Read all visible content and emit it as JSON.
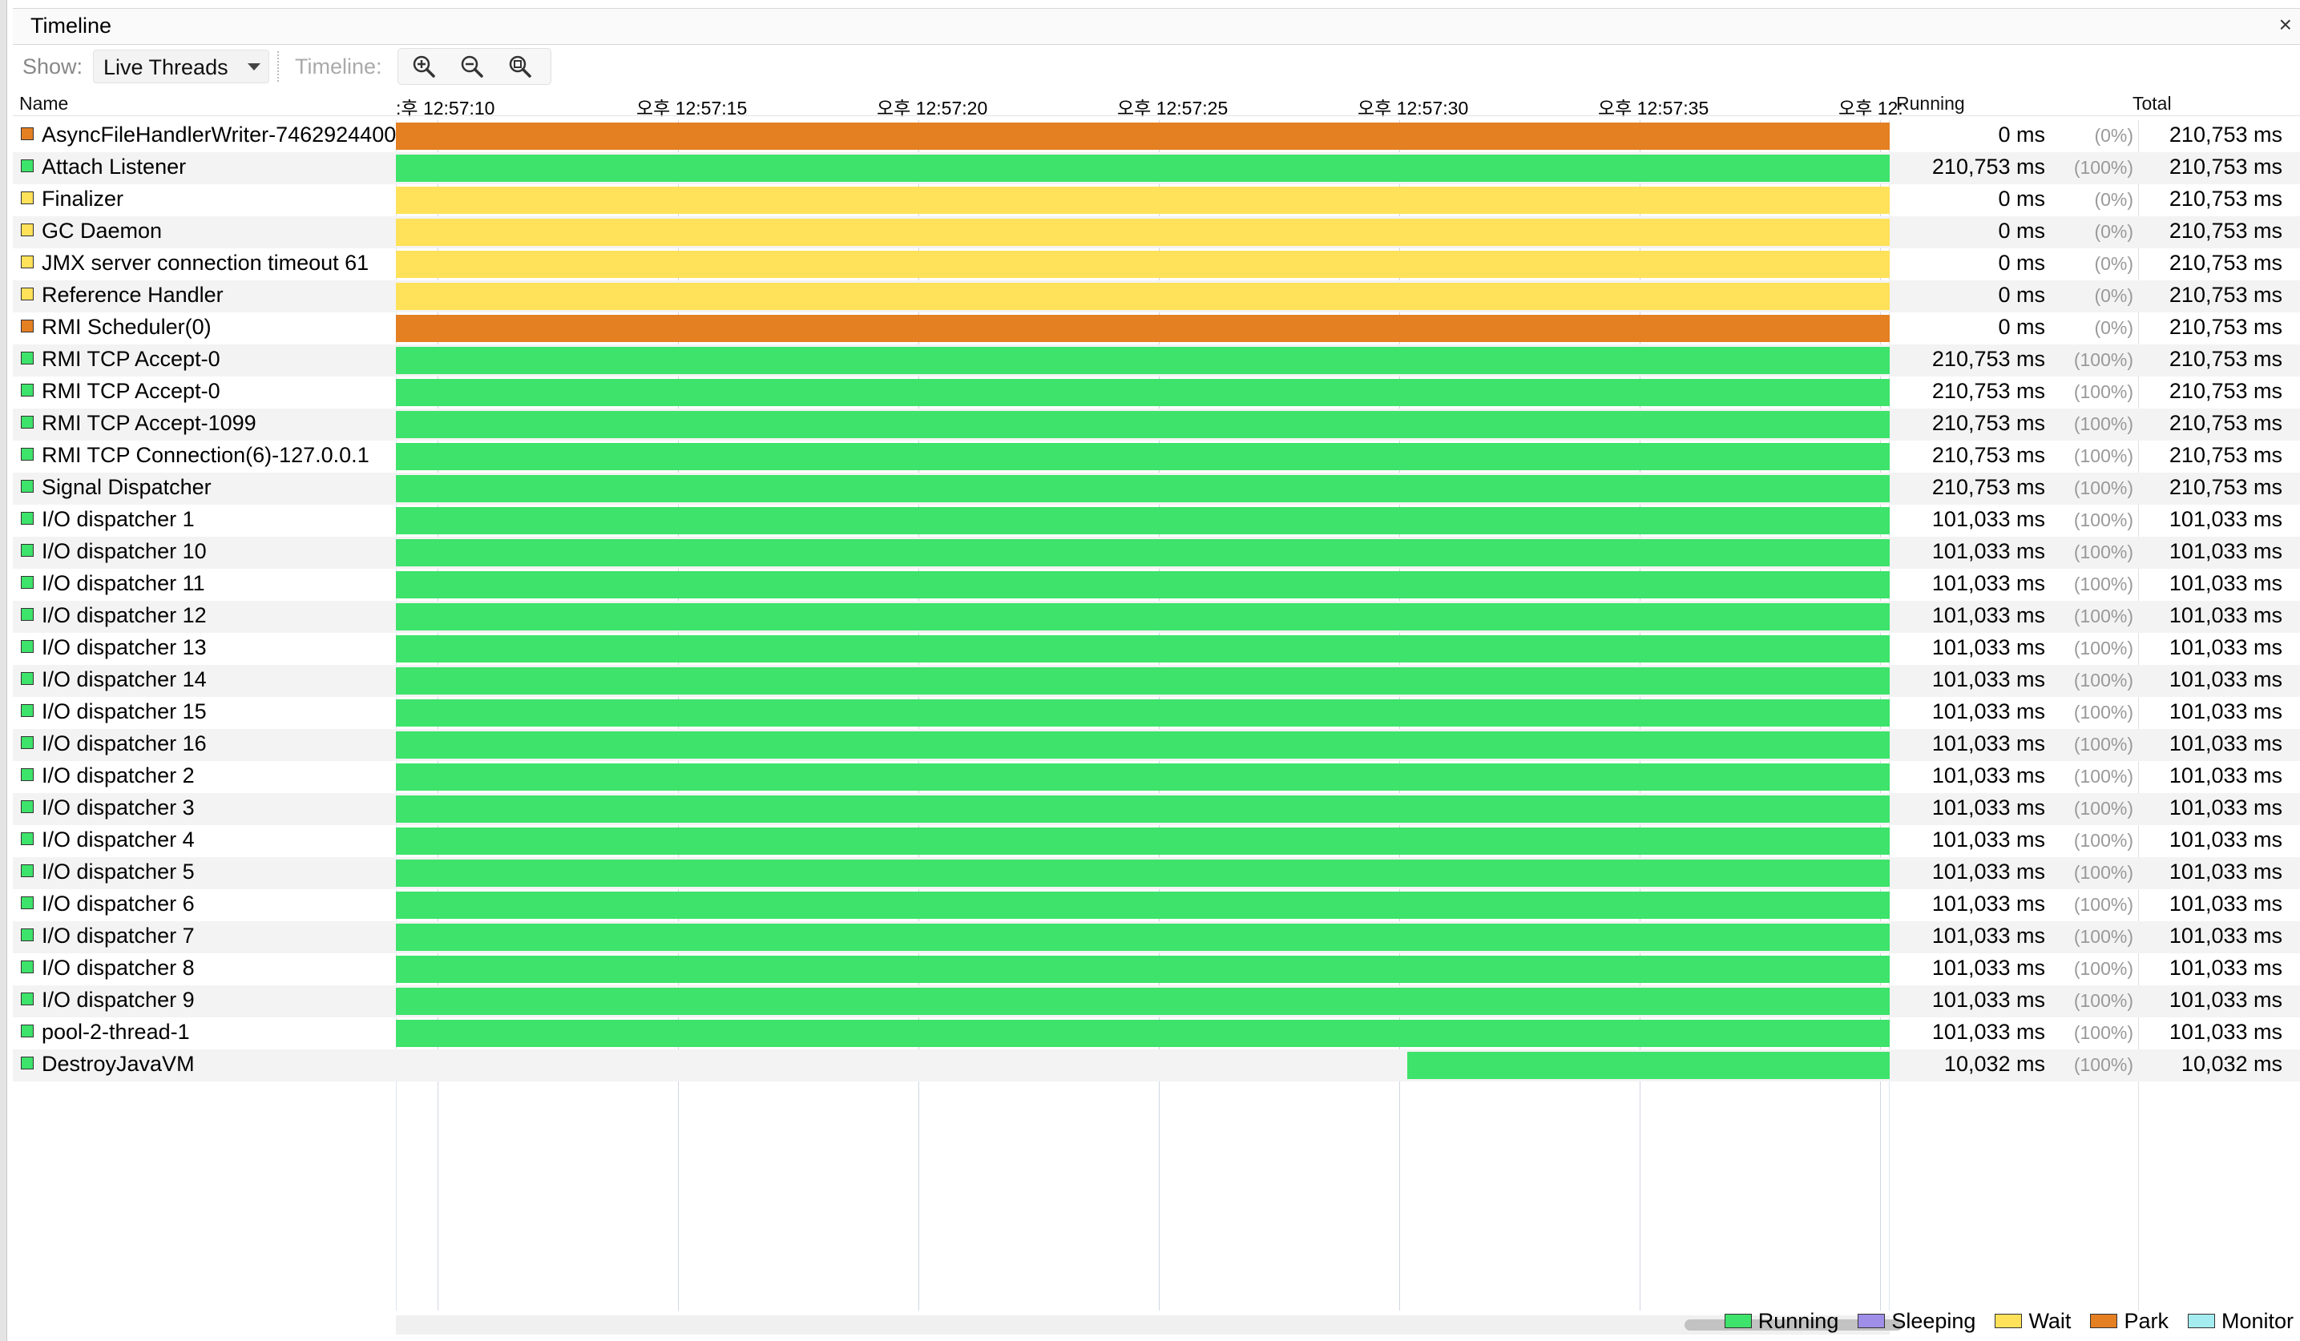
{
  "window": {
    "title": "Timeline"
  },
  "toolbar": {
    "show_label": "Show:",
    "show_value": "Live Threads",
    "timeline_label": "Timeline:"
  },
  "columns": {
    "name": "Name",
    "running": "Running",
    "total": "Total"
  },
  "ticks": ":후 12:57:10|오후 12:57:15|오후 12:57:20|오후 12:57:25|오후 12:57:30|오후 12:57:35|오후 12:",
  "tick_labels": [
    "​:후 12:57:10",
    "오후 12:57:15",
    "오후 12:57:20",
    "오후 12:57:25",
    "오후 12:57:30",
    "오후 12:57:35",
    "오후 12:"
  ],
  "colors": {
    "running": "#3de36a",
    "sleeping": "#9f8fe8",
    "wait": "#ffe15a",
    "park": "#e47f22",
    "monitor": "#a4ecef"
  },
  "threads": [
    {
      "name": "AsyncFileHandlerWriter-7462924400",
      "state": "park",
      "running": "0 ms",
      "pct": "(0%)",
      "total": "210,753 ms",
      "start": 0
    },
    {
      "name": "Attach Listener",
      "state": "running",
      "running": "210,753 ms",
      "pct": "(100%)",
      "total": "210,753 ms",
      "start": 0
    },
    {
      "name": "Finalizer",
      "state": "wait",
      "running": "0 ms",
      "pct": "(0%)",
      "total": "210,753 ms",
      "start": 0
    },
    {
      "name": "GC Daemon",
      "state": "wait",
      "running": "0 ms",
      "pct": "(0%)",
      "total": "210,753 ms",
      "start": 0
    },
    {
      "name": "JMX server connection timeout 61",
      "state": "wait",
      "running": "0 ms",
      "pct": "(0%)",
      "total": "210,753 ms",
      "start": 0
    },
    {
      "name": "Reference Handler",
      "state": "wait",
      "running": "0 ms",
      "pct": "(0%)",
      "total": "210,753 ms",
      "start": 0
    },
    {
      "name": "RMI Scheduler(0)",
      "state": "park",
      "running": "0 ms",
      "pct": "(0%)",
      "total": "210,753 ms",
      "start": 0
    },
    {
      "name": "RMI TCP Accept-0",
      "state": "running",
      "running": "210,753 ms",
      "pct": "(100%)",
      "total": "210,753 ms",
      "start": 0
    },
    {
      "name": "RMI TCP Accept-0",
      "state": "running",
      "running": "210,753 ms",
      "pct": "(100%)",
      "total": "210,753 ms",
      "start": 0
    },
    {
      "name": "RMI TCP Accept-1099",
      "state": "running",
      "running": "210,753 ms",
      "pct": "(100%)",
      "total": "210,753 ms",
      "start": 0
    },
    {
      "name": "RMI TCP Connection(6)-127.0.0.1",
      "state": "running",
      "running": "210,753 ms",
      "pct": "(100%)",
      "total": "210,753 ms",
      "start": 0
    },
    {
      "name": "Signal Dispatcher",
      "state": "running",
      "running": "210,753 ms",
      "pct": "(100%)",
      "total": "210,753 ms",
      "start": 0
    },
    {
      "name": "I/O dispatcher 1",
      "state": "running",
      "running": "101,033 ms",
      "pct": "(100%)",
      "total": "101,033 ms",
      "start": 0
    },
    {
      "name": "I/O dispatcher 10",
      "state": "running",
      "running": "101,033 ms",
      "pct": "(100%)",
      "total": "101,033 ms",
      "start": 0
    },
    {
      "name": "I/O dispatcher 11",
      "state": "running",
      "running": "101,033 ms",
      "pct": "(100%)",
      "total": "101,033 ms",
      "start": 0
    },
    {
      "name": "I/O dispatcher 12",
      "state": "running",
      "running": "101,033 ms",
      "pct": "(100%)",
      "total": "101,033 ms",
      "start": 0
    },
    {
      "name": "I/O dispatcher 13",
      "state": "running",
      "running": "101,033 ms",
      "pct": "(100%)",
      "total": "101,033 ms",
      "start": 0
    },
    {
      "name": "I/O dispatcher 14",
      "state": "running",
      "running": "101,033 ms",
      "pct": "(100%)",
      "total": "101,033 ms",
      "start": 0
    },
    {
      "name": "I/O dispatcher 15",
      "state": "running",
      "running": "101,033 ms",
      "pct": "(100%)",
      "total": "101,033 ms",
      "start": 0
    },
    {
      "name": "I/O dispatcher 16",
      "state": "running",
      "running": "101,033 ms",
      "pct": "(100%)",
      "total": "101,033 ms",
      "start": 0
    },
    {
      "name": "I/O dispatcher 2",
      "state": "running",
      "running": "101,033 ms",
      "pct": "(100%)",
      "total": "101,033 ms",
      "start": 0
    },
    {
      "name": "I/O dispatcher 3",
      "state": "running",
      "running": "101,033 ms",
      "pct": "(100%)",
      "total": "101,033 ms",
      "start": 0
    },
    {
      "name": "I/O dispatcher 4",
      "state": "running",
      "running": "101,033 ms",
      "pct": "(100%)",
      "total": "101,033 ms",
      "start": 0
    },
    {
      "name": "I/O dispatcher 5",
      "state": "running",
      "running": "101,033 ms",
      "pct": "(100%)",
      "total": "101,033 ms",
      "start": 0
    },
    {
      "name": "I/O dispatcher 6",
      "state": "running",
      "running": "101,033 ms",
      "pct": "(100%)",
      "total": "101,033 ms",
      "start": 0
    },
    {
      "name": "I/O dispatcher 7",
      "state": "running",
      "running": "101,033 ms",
      "pct": "(100%)",
      "total": "101,033 ms",
      "start": 0
    },
    {
      "name": "I/O dispatcher 8",
      "state": "running",
      "running": "101,033 ms",
      "pct": "(100%)",
      "total": "101,033 ms",
      "start": 0
    },
    {
      "name": "I/O dispatcher 9",
      "state": "running",
      "running": "101,033 ms",
      "pct": "(100%)",
      "total": "101,033 ms",
      "start": 0
    },
    {
      "name": "pool-2-thread-1",
      "state": "running",
      "running": "101,033 ms",
      "pct": "(100%)",
      "total": "101,033 ms",
      "start": 0
    },
    {
      "name": "DestroyJavaVM",
      "state": "running",
      "running": "10,032 ms",
      "pct": "(100%)",
      "total": "10,032 ms",
      "start": 0.677
    }
  ],
  "legend": [
    {
      "label": "Running",
      "color": "#3de36a"
    },
    {
      "label": "Sleeping",
      "color": "#9f8fe8"
    },
    {
      "label": "Wait",
      "color": "#ffe15a"
    },
    {
      "label": "Park",
      "color": "#e47f22"
    },
    {
      "label": "Monitor",
      "color": "#a4ecef"
    }
  ]
}
